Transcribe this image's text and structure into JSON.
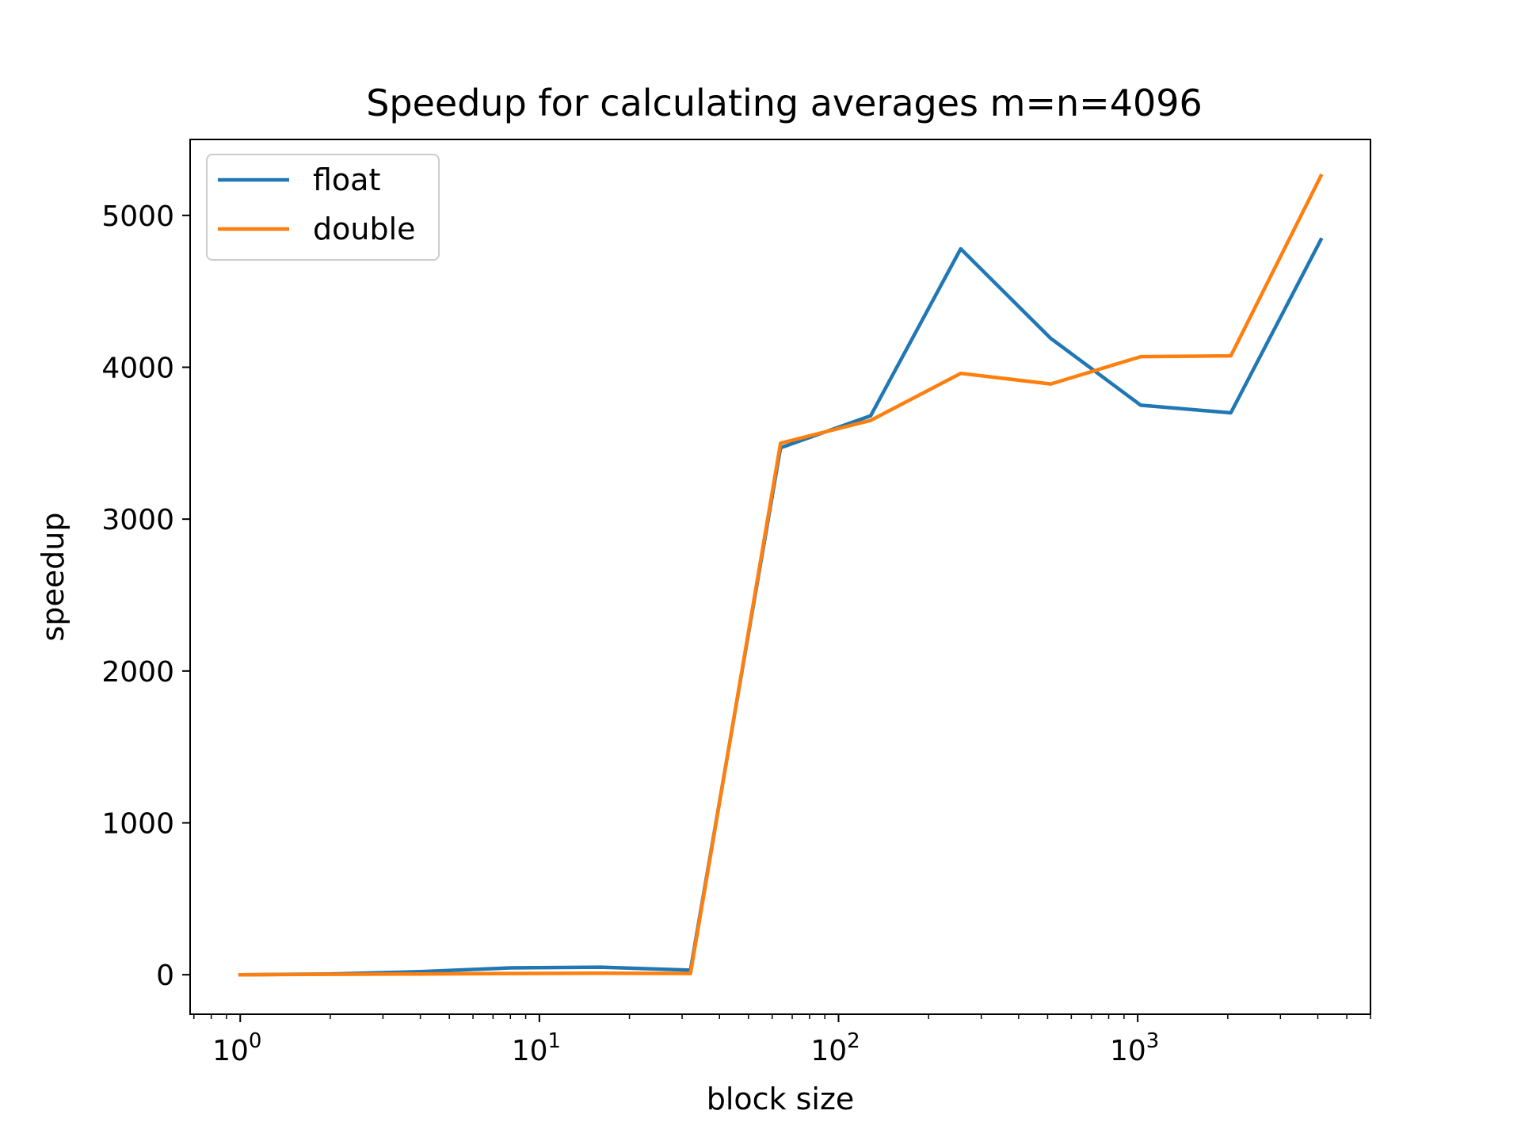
{
  "chart_data": {
    "type": "line",
    "title": "Speedup for calculating averages m=n=4096",
    "xlabel": "block size",
    "ylabel": "speedup",
    "xscale": "log",
    "xlim": [
      0.68,
      6000
    ],
    "ylim": [
      -260,
      5500
    ],
    "x": [
      1,
      2,
      4,
      8,
      16,
      32,
      64,
      128,
      256,
      512,
      1024,
      2048,
      4096
    ],
    "series": [
      {
        "name": "float",
        "color": "#1f77b4",
        "values": [
          0,
          5,
          20,
          45,
          50,
          30,
          3470,
          3680,
          4780,
          4190,
          3750,
          3700,
          4840
        ]
      },
      {
        "name": "double",
        "color": "#ff7f0e",
        "values": [
          0,
          3,
          5,
          8,
          10,
          8,
          3500,
          3650,
          3960,
          3890,
          4070,
          4075,
          5260
        ]
      }
    ],
    "x_ticks": [
      {
        "value": 1,
        "base": "10",
        "exp": "0"
      },
      {
        "value": 10,
        "base": "10",
        "exp": "1"
      },
      {
        "value": 100,
        "base": "10",
        "exp": "2"
      },
      {
        "value": 1000,
        "base": "10",
        "exp": "3"
      }
    ],
    "y_ticks": [
      {
        "value": 0,
        "label": "0"
      },
      {
        "value": 1000,
        "label": "1000"
      },
      {
        "value": 2000,
        "label": "2000"
      },
      {
        "value": 3000,
        "label": "3000"
      },
      {
        "value": 4000,
        "label": "4000"
      },
      {
        "value": 5000,
        "label": "5000"
      }
    ],
    "legend_position": "top-left",
    "grid": false
  }
}
